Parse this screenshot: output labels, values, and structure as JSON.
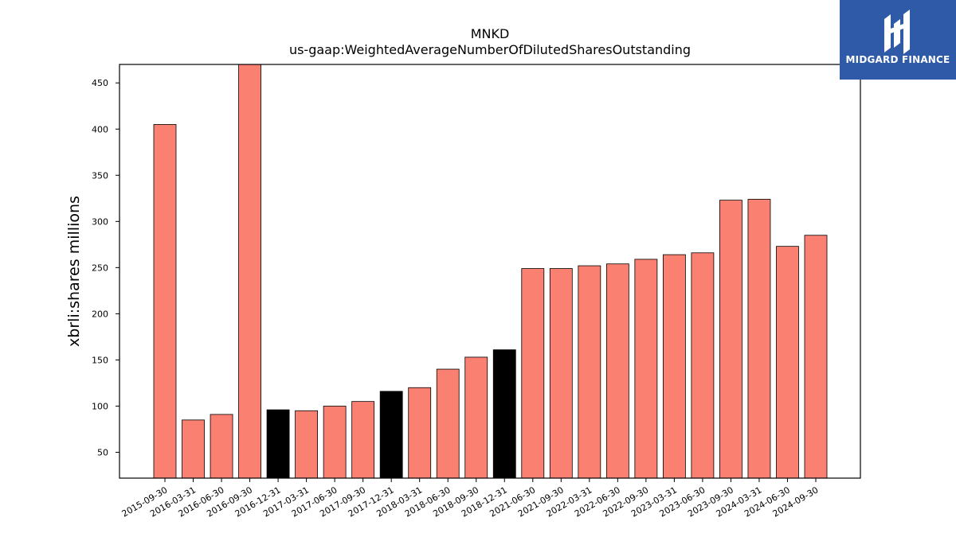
{
  "brand": {
    "name": "MIDGARD FINANCE",
    "bg": "#2f5aa8"
  },
  "chart_data": {
    "type": "bar",
    "title": "MNKD",
    "subtitle": "us-gaap:WeightedAverageNumberOfDilutedSharesOutstanding",
    "xlabel": "",
    "ylabel": "xbrli:shares millions",
    "ylim": [
      22,
      470
    ],
    "yticks": [
      50,
      100,
      150,
      200,
      250,
      300,
      350,
      400,
      450
    ],
    "grid": false,
    "categories": [
      "2015-09-30",
      "2016-03-31",
      "2016-06-30",
      "2016-09-30",
      "2016-12-31",
      "2017-03-31",
      "2017-06-30",
      "2017-09-30",
      "2017-12-31",
      "2018-03-31",
      "2018-06-30",
      "2018-09-30",
      "2018-12-31",
      "2021-06-30",
      "2021-09-30",
      "2022-03-31",
      "2022-06-30",
      "2022-09-30",
      "2023-03-31",
      "2023-06-30",
      "2023-09-30",
      "2024-03-31",
      "2024-06-30",
      "2024-09-30"
    ],
    "values": [
      405,
      85,
      91,
      470,
      96,
      95,
      100,
      105,
      116,
      120,
      140,
      153,
      161,
      249,
      249,
      252,
      254,
      259,
      264,
      266,
      323,
      324,
      273,
      285
    ],
    "colors": [
      "#fa8072",
      "#fa8072",
      "#fa8072",
      "#fa8072",
      "#000000",
      "#fa8072",
      "#fa8072",
      "#fa8072",
      "#000000",
      "#fa8072",
      "#fa8072",
      "#fa8072",
      "#000000",
      "#fa8072",
      "#fa8072",
      "#fa8072",
      "#fa8072",
      "#fa8072",
      "#fa8072",
      "#fa8072",
      "#fa8072",
      "#fa8072",
      "#fa8072",
      "#fa8072"
    ]
  }
}
